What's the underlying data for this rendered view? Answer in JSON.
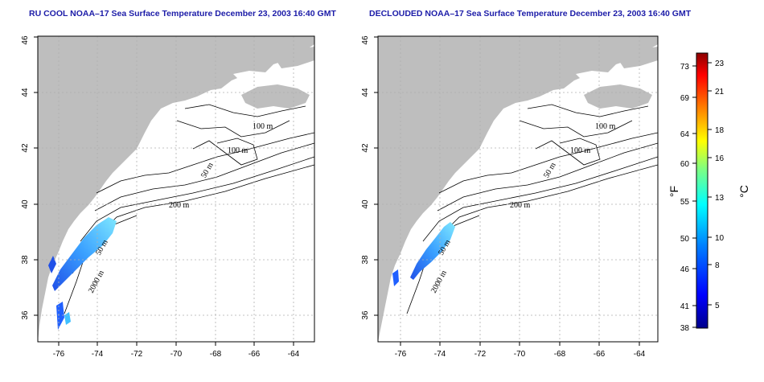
{
  "titles": {
    "left": "RU COOL NOAA–17 Sea Surface Temperature December 23, 2003 16:40 GMT",
    "right": "DECLOUDED NOAA–17 Sea Surface Temperature December 23, 2003 16:40 GMT"
  },
  "map_axes": {
    "x_ticks": [
      "-76",
      "-74",
      "-72",
      "-70",
      "-68",
      "-66",
      "-64"
    ],
    "y_ticks": [
      "36",
      "38",
      "40",
      "42",
      "44",
      "46"
    ],
    "lon_range": [
      -77.0,
      -63.0
    ],
    "lat_range": [
      35.0,
      46.0
    ],
    "grid": "dotted"
  },
  "contour_labels": {
    "m100_a": "100 m",
    "m100_b": "100 m",
    "m50_a": "50 m",
    "m200": "200 m",
    "m50_b": "50 m",
    "m2000": "2000 m"
  },
  "colorbar": {
    "label_f": "°F",
    "label_c": "°C",
    "fahrenheit_ticks": [
      "73",
      "69",
      "64",
      "60",
      "55",
      "50",
      "46",
      "41",
      "38"
    ],
    "celsius_ticks": [
      "23",
      "21",
      "18",
      "16",
      "13",
      "10",
      "8",
      "5"
    ],
    "colors": [
      "#00008b",
      "#0000ff",
      "#0080ff",
      "#00ffff",
      "#80ff80",
      "#ffff00",
      "#ff8000",
      "#ff0000",
      "#8b0000"
    ]
  },
  "colors": {
    "land": "#bebebe",
    "ocean": "#ffffff",
    "title": "#1c1ca8"
  }
}
